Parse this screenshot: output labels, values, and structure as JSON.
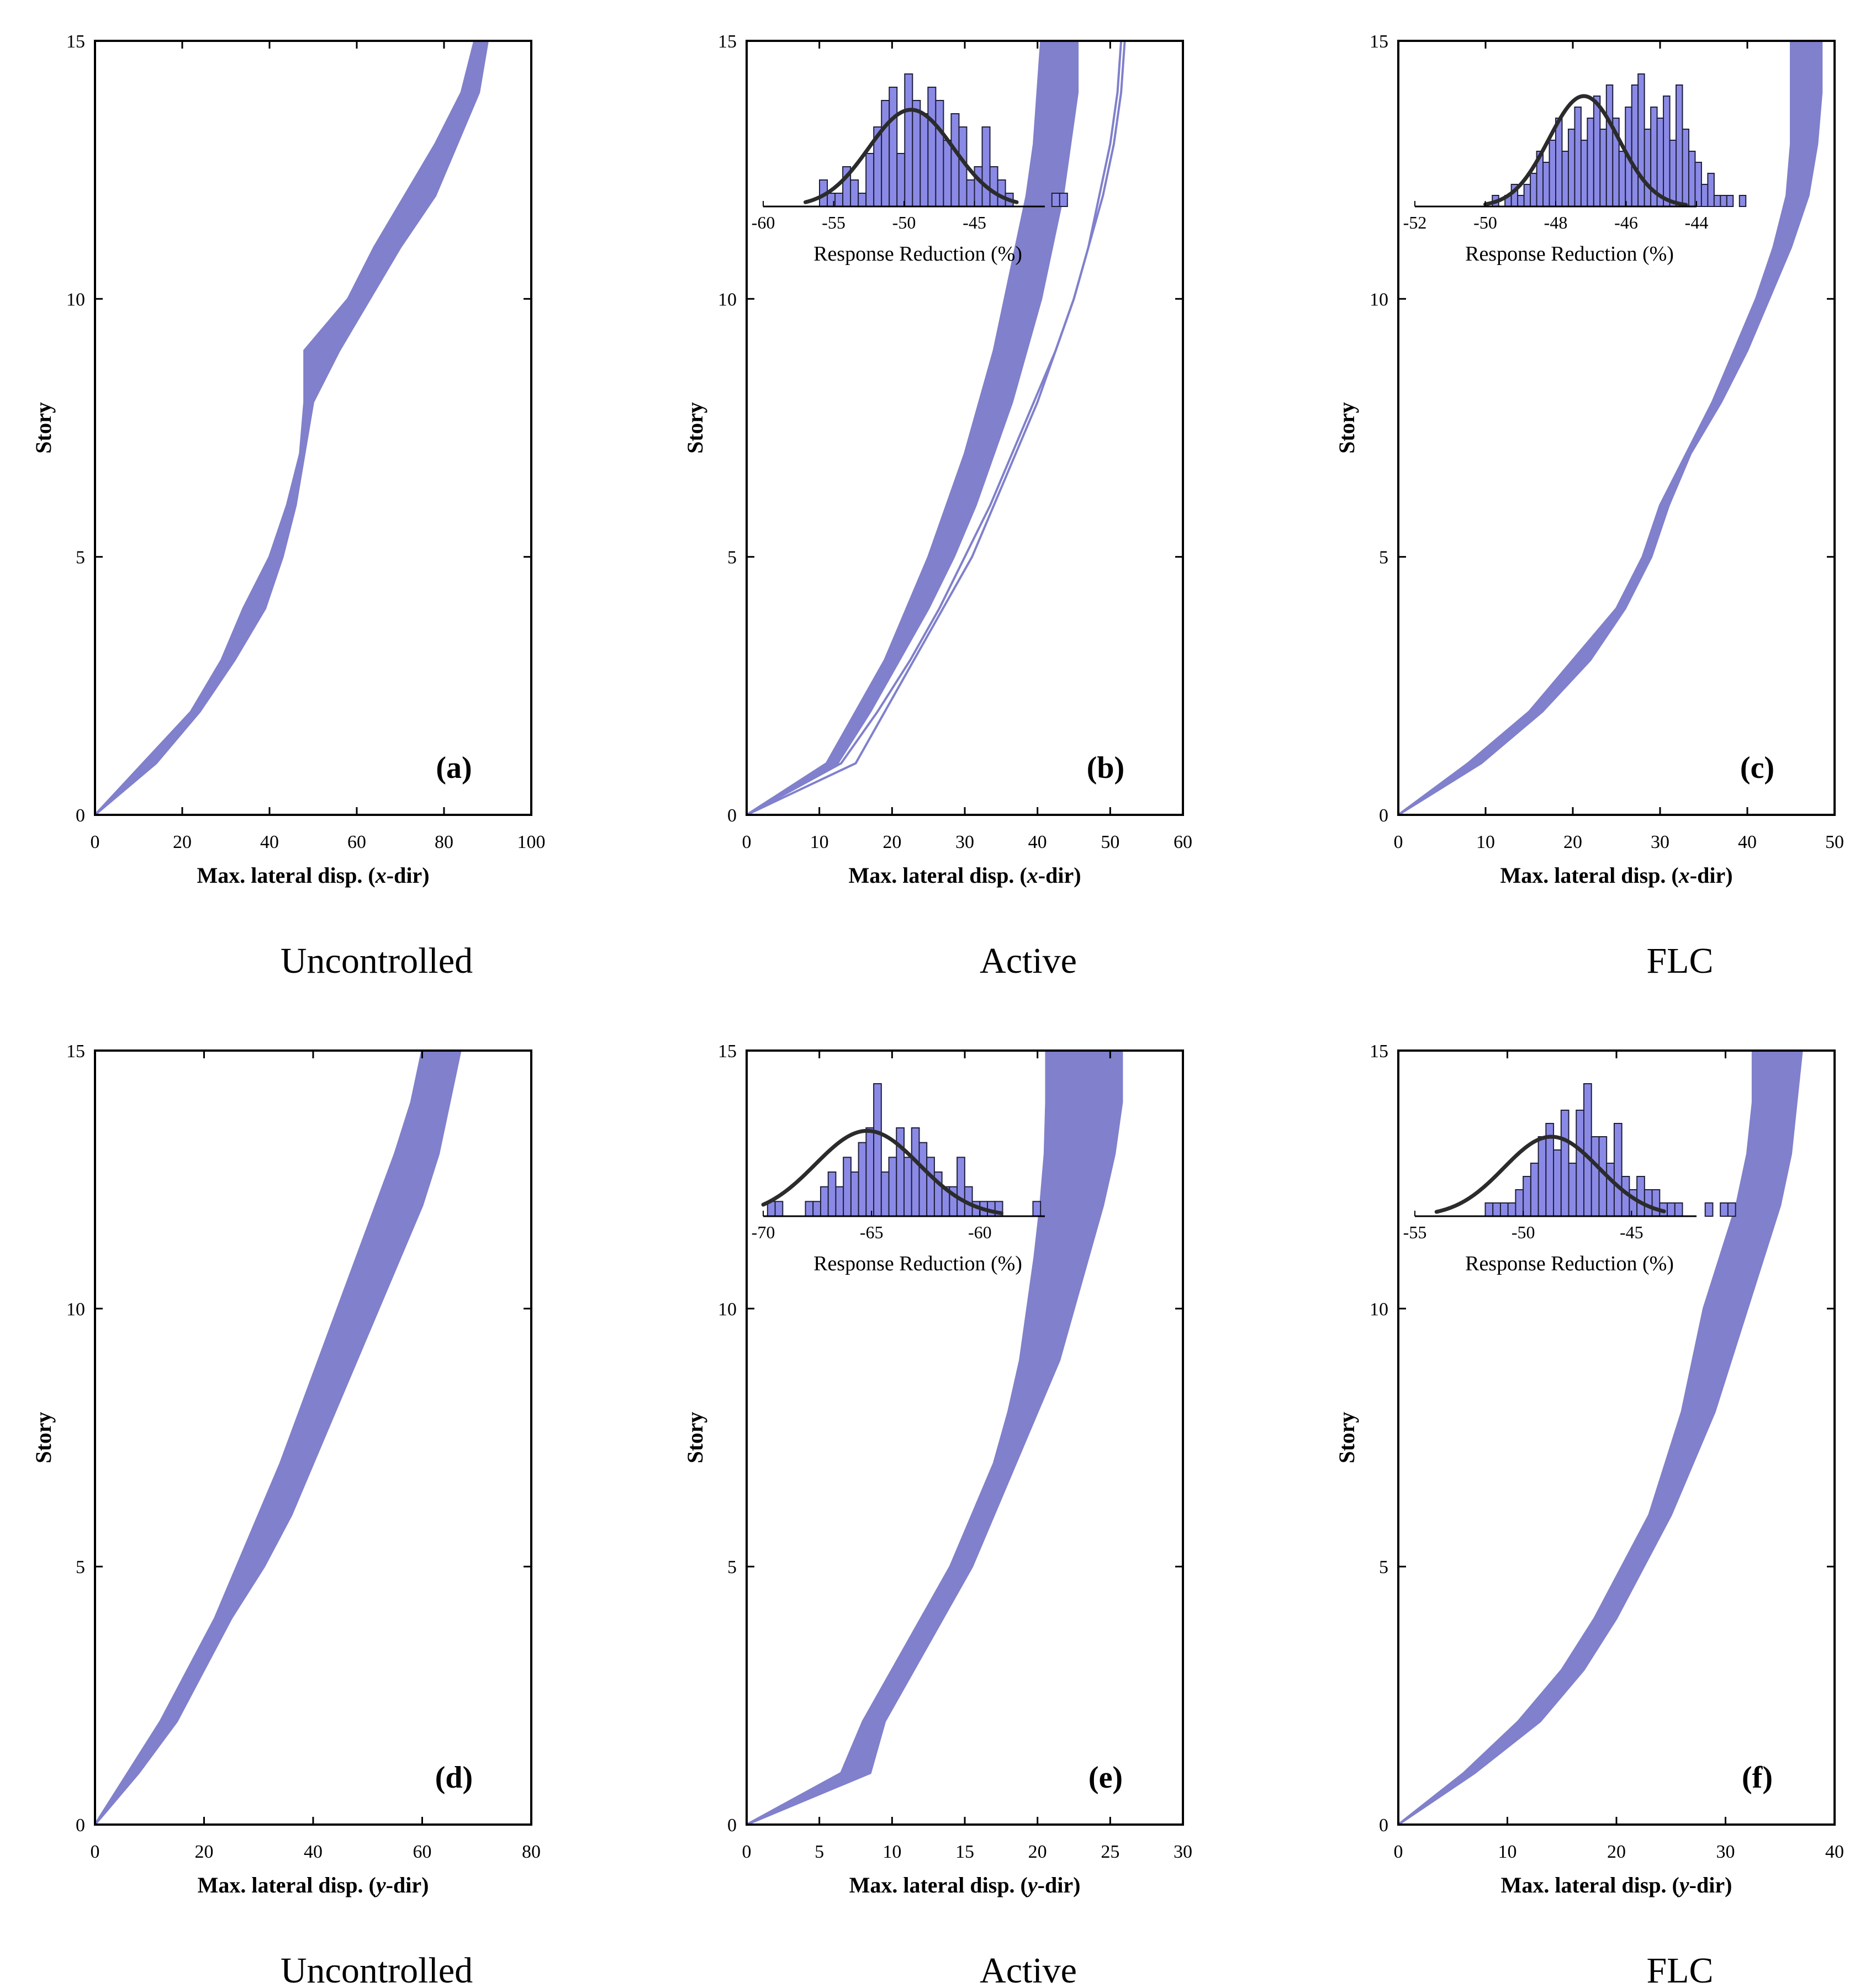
{
  "colors": {
    "band": "#8080cc",
    "hist_fill": "#8a8ae6",
    "hist_stroke": "#1f1f3a",
    "fit_curve": "#2b2b2b",
    "axis": "#000000"
  },
  "ylabel": "Story",
  "inset_xlabel": "Response Reduction (%)",
  "chart_data": [
    {
      "type": "line",
      "tag": "(a)",
      "caption": "Uncontrolled",
      "xlabel": "Max. lateral disp. (x-dir)",
      "ylabel": "Story",
      "xlim": [
        0,
        100
      ],
      "ylim": [
        0,
        15
      ],
      "xticks": [
        0,
        20,
        40,
        60,
        80,
        100
      ],
      "yticks": [
        0,
        5,
        10,
        15
      ],
      "lower": [
        [
          0,
          0
        ],
        [
          11,
          1
        ],
        [
          22,
          2
        ],
        [
          29,
          3
        ],
        [
          34,
          4
        ],
        [
          40,
          5
        ],
        [
          44,
          6
        ],
        [
          47,
          7
        ],
        [
          48,
          8
        ],
        [
          48,
          9
        ],
        [
          58,
          10
        ],
        [
          64,
          11
        ],
        [
          71,
          12
        ],
        [
          78,
          13
        ],
        [
          84,
          14
        ],
        [
          87,
          15
        ]
      ],
      "upper": [
        [
          0,
          0
        ],
        [
          14,
          1
        ],
        [
          24,
          2
        ],
        [
          32,
          3
        ],
        [
          39,
          4
        ],
        [
          43,
          5
        ],
        [
          46,
          6
        ],
        [
          48,
          7
        ],
        [
          50,
          8
        ],
        [
          56,
          9
        ],
        [
          63,
          10
        ],
        [
          70,
          11
        ],
        [
          78,
          12
        ],
        [
          83,
          13
        ],
        [
          88,
          14
        ],
        [
          90,
          15
        ]
      ],
      "inset": null
    },
    {
      "type": "line",
      "tag": "(b)",
      "caption": "Active",
      "xlabel": "Max. lateral disp. (x-dir)",
      "ylabel": "Story",
      "xlim": [
        0,
        60
      ],
      "ylim": [
        0,
        15
      ],
      "xticks": [
        0,
        10,
        20,
        30,
        40,
        50,
        60
      ],
      "yticks": [
        0,
        5,
        10,
        15
      ],
      "lower": [
        [
          0,
          0
        ],
        [
          11,
          1
        ],
        [
          15,
          2
        ],
        [
          19,
          3
        ],
        [
          22,
          4
        ],
        [
          25,
          5
        ],
        [
          27.5,
          6
        ],
        [
          30,
          7
        ],
        [
          32,
          8
        ],
        [
          34,
          9
        ],
        [
          35.5,
          10
        ],
        [
          37,
          11
        ],
        [
          38.5,
          12
        ],
        [
          39.5,
          13
        ],
        [
          40,
          14
        ],
        [
          40.5,
          15
        ]
      ],
      "upper": [
        [
          0,
          0
        ],
        [
          12.5,
          1
        ],
        [
          17,
          2
        ],
        [
          21,
          3
        ],
        [
          25,
          4
        ],
        [
          28.5,
          5
        ],
        [
          31.5,
          6
        ],
        [
          34,
          7
        ],
        [
          36.5,
          8
        ],
        [
          38.5,
          9
        ],
        [
          40.5,
          10
        ],
        [
          42,
          11
        ],
        [
          43.5,
          12
        ],
        [
          44.5,
          13
        ],
        [
          45.5,
          14
        ],
        [
          45.5,
          15
        ]
      ],
      "outliers": [
        [
          [
            0,
            0
          ],
          [
            15,
            1
          ],
          [
            19,
            2
          ],
          [
            23,
            3
          ],
          [
            27,
            4
          ],
          [
            31,
            5
          ],
          [
            34,
            6
          ],
          [
            37,
            7
          ],
          [
            40,
            8
          ],
          [
            42.5,
            9
          ],
          [
            45,
            10
          ],
          [
            47,
            11
          ],
          [
            49,
            12
          ],
          [
            50.5,
            13
          ],
          [
            51.5,
            14
          ],
          [
            52,
            15
          ]
        ],
        [
          [
            0,
            0
          ],
          [
            13,
            1
          ],
          [
            18,
            2
          ],
          [
            22.5,
            3
          ],
          [
            26.5,
            4
          ],
          [
            30,
            5
          ],
          [
            33.5,
            6
          ],
          [
            36.5,
            7
          ],
          [
            39.5,
            8
          ],
          [
            42.5,
            9
          ],
          [
            45,
            10
          ],
          [
            47,
            11
          ],
          [
            48.5,
            12
          ],
          [
            50,
            13
          ],
          [
            51,
            14
          ],
          [
            51.5,
            15
          ]
        ]
      ],
      "inset": {
        "type": "bar",
        "xlim": [
          -60,
          -40
        ],
        "xticks": [
          -60,
          -55,
          -50,
          -45
        ],
        "xticklabels": [
          "-60",
          "-55",
          "-50",
          "-45"
        ],
        "bin_width": 0.55,
        "bin_start": -56.0,
        "counts": [
          2,
          1,
          1,
          3,
          2,
          1,
          4,
          6,
          8,
          9,
          4,
          10,
          8,
          7,
          9,
          8,
          5,
          7,
          6,
          2,
          3,
          6,
          3,
          2,
          1,
          0,
          0,
          0,
          0,
          0,
          1,
          1
        ],
        "fit": {
          "mean": -49.5,
          "sd": 3.0,
          "peak": 7.3,
          "range": [
            -57,
            -42
          ]
        }
      }
    },
    {
      "type": "line",
      "tag": "(c)",
      "caption": "FLC",
      "xlabel": "Max. lateral disp. (x-dir)",
      "ylabel": "Story",
      "xlim": [
        0,
        50
      ],
      "ylim": [
        0,
        15
      ],
      "xticks": [
        0,
        10,
        20,
        30,
        40,
        50
      ],
      "yticks": [
        0,
        5,
        10,
        15
      ],
      "lower": [
        [
          0,
          0
        ],
        [
          8,
          1
        ],
        [
          15,
          2
        ],
        [
          20,
          3
        ],
        [
          25,
          4
        ],
        [
          28,
          5
        ],
        [
          30,
          6
        ],
        [
          33,
          7
        ],
        [
          36,
          8
        ],
        [
          38.5,
          9
        ],
        [
          41,
          10
        ],
        [
          43,
          11
        ],
        [
          44.5,
          12
        ],
        [
          45,
          13
        ],
        [
          45,
          14
        ],
        [
          45,
          15
        ]
      ],
      "upper": [
        [
          0,
          0
        ],
        [
          9.5,
          1
        ],
        [
          16.5,
          2
        ],
        [
          22,
          3
        ],
        [
          26,
          4
        ],
        [
          29,
          5
        ],
        [
          31,
          6
        ],
        [
          33.5,
          7
        ],
        [
          37,
          8
        ],
        [
          40,
          9
        ],
        [
          42.5,
          10
        ],
        [
          45,
          11
        ],
        [
          47,
          12
        ],
        [
          48,
          13
        ],
        [
          48.5,
          14
        ],
        [
          48.5,
          15
        ]
      ],
      "inset": {
        "type": "bar",
        "xlim": [
          -52,
          -44
        ],
        "xticks": [
          -52,
          -50,
          -48,
          -46,
          -44
        ],
        "xticklabels": [
          "-52",
          "-50",
          "-48",
          "-46",
          "-44"
        ],
        "bin_width": 0.18,
        "bin_start": -49.8,
        "counts": [
          1,
          0,
          1,
          2,
          1,
          2,
          3,
          5,
          4,
          6,
          8,
          5,
          7,
          9,
          6,
          8,
          10,
          7,
          11,
          8,
          5,
          9,
          11,
          12,
          7,
          9,
          8,
          10,
          6,
          11,
          7,
          5,
          4,
          2,
          3,
          1,
          1,
          1,
          0,
          1
        ],
        "fit": {
          "mean": -47.2,
          "sd": 1.0,
          "peak": 10.0,
          "range": [
            -50,
            -44.3
          ]
        }
      }
    },
    {
      "type": "line",
      "tag": "(d)",
      "caption": "Uncontrolled",
      "xlabel": "Max. lateral disp. (y-dir)",
      "ylabel": "Story",
      "xlim": [
        0,
        80
      ],
      "ylim": [
        0,
        15
      ],
      "xticks": [
        0,
        20,
        40,
        60,
        80
      ],
      "yticks": [
        0,
        5,
        10,
        15
      ],
      "lower": [
        [
          0,
          0
        ],
        [
          6,
          1
        ],
        [
          12,
          2
        ],
        [
          17,
          3
        ],
        [
          22,
          4
        ],
        [
          26,
          5
        ],
        [
          30,
          6
        ],
        [
          34,
          7
        ],
        [
          37.5,
          8
        ],
        [
          41,
          9
        ],
        [
          44.5,
          10
        ],
        [
          48,
          11
        ],
        [
          51.5,
          12
        ],
        [
          55,
          13
        ],
        [
          58,
          14
        ],
        [
          60,
          15
        ]
      ],
      "upper": [
        [
          0,
          0
        ],
        [
          8,
          1
        ],
        [
          15,
          2
        ],
        [
          20,
          3
        ],
        [
          25,
          4
        ],
        [
          31,
          5
        ],
        [
          36,
          6
        ],
        [
          40,
          7
        ],
        [
          44,
          8
        ],
        [
          48,
          9
        ],
        [
          52,
          10
        ],
        [
          56,
          11
        ],
        [
          60,
          12
        ],
        [
          63,
          13
        ],
        [
          65,
          14
        ],
        [
          67,
          15
        ]
      ],
      "inset": null
    },
    {
      "type": "line",
      "tag": "(e)",
      "caption": "Active",
      "xlabel": "Max. lateral disp. (y-dir)",
      "ylabel": "Story",
      "xlim": [
        0,
        30
      ],
      "ylim": [
        0,
        15
      ],
      "xticks": [
        0,
        5,
        10,
        15,
        20,
        25,
        30
      ],
      "yticks": [
        0,
        5,
        10,
        15
      ],
      "lower": [
        [
          0,
          0
        ],
        [
          6.5,
          1
        ],
        [
          8,
          2
        ],
        [
          10,
          3
        ],
        [
          12,
          4
        ],
        [
          14,
          5
        ],
        [
          15.5,
          6
        ],
        [
          17,
          7
        ],
        [
          18,
          8
        ],
        [
          18.8,
          9
        ],
        [
          19.3,
          10
        ],
        [
          19.8,
          11
        ],
        [
          20.2,
          12
        ],
        [
          20.5,
          13
        ],
        [
          20.6,
          14
        ],
        [
          20.6,
          15
        ]
      ],
      "upper": [
        [
          0,
          0
        ],
        [
          8.5,
          1
        ],
        [
          9.5,
          2
        ],
        [
          11.5,
          3
        ],
        [
          13.5,
          4
        ],
        [
          15.5,
          5
        ],
        [
          17,
          6
        ],
        [
          18.5,
          7
        ],
        [
          20,
          8
        ],
        [
          21.5,
          9
        ],
        [
          22.5,
          10
        ],
        [
          23.5,
          11
        ],
        [
          24.5,
          12
        ],
        [
          25.3,
          13
        ],
        [
          25.8,
          14
        ],
        [
          25.8,
          15
        ]
      ],
      "inset": {
        "type": "bar",
        "xlim": [
          -70,
          -57
        ],
        "xticks": [
          -70,
          -65,
          -60
        ],
        "xticklabels": [
          "-70",
          "-65",
          "-60"
        ],
        "bin_width": 0.35,
        "bin_start": -69.8,
        "counts": [
          1,
          1,
          0,
          0,
          0,
          1,
          1,
          2,
          3,
          2,
          4,
          3,
          5,
          6,
          9,
          3,
          4,
          6,
          4,
          6,
          5,
          4,
          3,
          2,
          2,
          4,
          2,
          1,
          1,
          1,
          1,
          0,
          0,
          0,
          0,
          1
        ],
        "fit": {
          "mean": -65.2,
          "sd": 2.4,
          "peak": 5.8,
          "range": [
            -70,
            -59
          ]
        }
      }
    },
    {
      "type": "line",
      "tag": "(f)",
      "caption": "FLC",
      "xlabel": "Max. lateral disp. (y-dir)",
      "ylabel": "Story",
      "xlim": [
        0,
        40
      ],
      "ylim": [
        0,
        15
      ],
      "xticks": [
        0,
        10,
        20,
        30,
        40
      ],
      "yticks": [
        0,
        5,
        10,
        15
      ],
      "lower": [
        [
          0,
          0
        ],
        [
          6,
          1
        ],
        [
          11,
          2
        ],
        [
          15,
          3
        ],
        [
          18,
          4
        ],
        [
          20.5,
          5
        ],
        [
          23,
          6
        ],
        [
          24.5,
          7
        ],
        [
          26,
          8
        ],
        [
          27,
          9
        ],
        [
          28,
          10
        ],
        [
          29.5,
          11
        ],
        [
          31,
          12
        ],
        [
          32,
          13
        ],
        [
          32.5,
          14
        ],
        [
          32.5,
          15
        ]
      ],
      "upper": [
        [
          0,
          0
        ],
        [
          7,
          1
        ],
        [
          13,
          2
        ],
        [
          17,
          3
        ],
        [
          20,
          4
        ],
        [
          22.5,
          5
        ],
        [
          25,
          6
        ],
        [
          27,
          7
        ],
        [
          29,
          8
        ],
        [
          30.5,
          9
        ],
        [
          32,
          10
        ],
        [
          33.5,
          11
        ],
        [
          35,
          12
        ],
        [
          36,
          13
        ],
        [
          36.5,
          14
        ],
        [
          37,
          15
        ]
      ],
      "inset": {
        "type": "bar",
        "xlim": [
          -55,
          -42
        ],
        "xticks": [
          -55,
          -50,
          -45
        ],
        "xticklabels": [
          "-55",
          "-50",
          "-45"
        ],
        "bin_width": 0.35,
        "bin_start": -53.5,
        "counts": [
          0,
          0,
          0,
          0,
          0,
          1,
          1,
          1,
          1,
          2,
          3,
          4,
          6,
          7,
          5,
          8,
          4,
          8,
          10,
          6,
          6,
          4,
          7,
          3,
          2,
          3,
          2,
          2,
          1,
          1,
          1,
          0,
          0,
          0,
          1,
          0,
          1,
          1
        ],
        "fit": {
          "mean": -48.7,
          "sd": 2.2,
          "peak": 6.0,
          "range": [
            -54,
            -43.5
          ]
        }
      }
    }
  ]
}
